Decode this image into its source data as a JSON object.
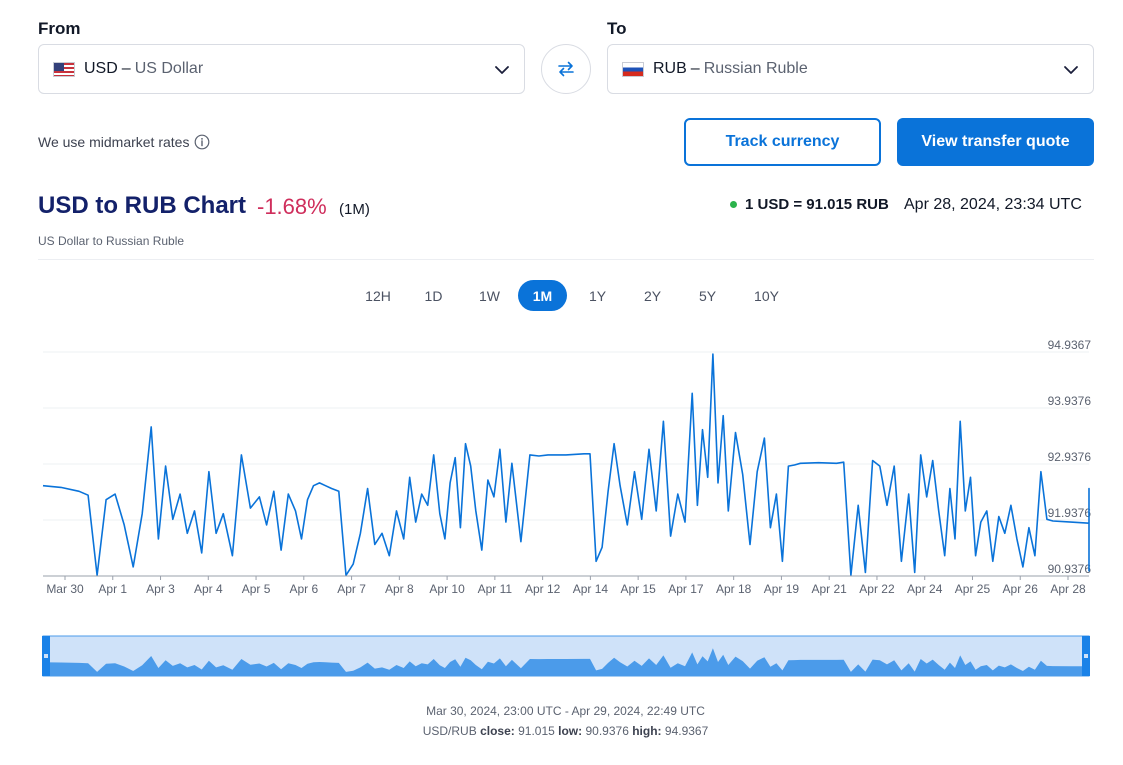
{
  "from": {
    "label": "From",
    "code": "USD",
    "name": "US Dollar",
    "flag": "us-flag-icon"
  },
  "to": {
    "label": "To",
    "code": "RUB",
    "name": "Russian Ruble",
    "flag": "ru-flag-icon"
  },
  "note": "We use midmarket rates",
  "buttons": {
    "track": "Track currency",
    "quote": "View transfer quote"
  },
  "chart_header": {
    "title": "USD to RUB Chart",
    "change": "-1.68%",
    "period": "(1M)",
    "subtitle": "US Dollar to Russian Ruble",
    "rate": "1 USD = 91.015 RUB",
    "timestamp": "Apr 28, 2024, 23:34 UTC"
  },
  "periods": [
    "12H",
    "1D",
    "1W",
    "1M",
    "1Y",
    "2Y",
    "5Y",
    "10Y"
  ],
  "active_period": "1M",
  "footer": {
    "range": "Mar 30, 2024, 23:00 UTC - Apr 29, 2024, 22:49 UTC",
    "pair": "USD/RUB",
    "close_label": "close:",
    "close": "91.015",
    "low_label": "low:",
    "low": "90.9376",
    "high_label": "high:",
    "high": "94.9367"
  },
  "colors": {
    "accent": "#0a73d9",
    "negative": "#cf2e5c",
    "live": "#2bb34b",
    "title": "#13216a"
  },
  "chart_data": {
    "type": "line",
    "x_tick_labels": [
      "Mar 30",
      "Apr 1",
      "Apr 3",
      "Apr 4",
      "Apr 5",
      "Apr 6",
      "Apr 7",
      "Apr 8",
      "Apr 10",
      "Apr 11",
      "Apr 12",
      "Apr 14",
      "Apr 15",
      "Apr 17",
      "Apr 18",
      "Apr 19",
      "Apr 21",
      "Apr 22",
      "Apr 24",
      "Apr 25",
      "Apr 26",
      "Apr 28"
    ],
    "y_tick_labels": [
      "94.9367",
      "93.9376",
      "92.9376",
      "91.9376",
      "90.9376"
    ],
    "ylim": [
      90.9376,
      94.9367
    ],
    "xlim": [
      "2024-03-30",
      "2024-04-28"
    ],
    "series": [
      {
        "points": [
          [
            "2024-03-30",
            92.55
          ],
          [
            "2024-03-30",
            92.52
          ],
          [
            "2024-03-31",
            92.45
          ],
          [
            "2024-03-31",
            92.38
          ],
          [
            "2024-03-31",
            90.95
          ],
          [
            "2024-03-31",
            92.3
          ],
          [
            "2024-04-01",
            92.4
          ],
          [
            "2024-04-01",
            91.85
          ],
          [
            "2024-04-01",
            91.1
          ],
          [
            "2024-04-01",
            92.05
          ],
          [
            "2024-04-02",
            93.6
          ],
          [
            "2024-04-02",
            91.6
          ],
          [
            "2024-04-02",
            92.9
          ],
          [
            "2024-04-02",
            91.95
          ],
          [
            "2024-04-02",
            92.4
          ],
          [
            "2024-04-03",
            91.7
          ],
          [
            "2024-04-03",
            92.1
          ],
          [
            "2024-04-03",
            91.35
          ],
          [
            "2024-04-03",
            92.8
          ],
          [
            "2024-04-03",
            91.7
          ],
          [
            "2024-04-04",
            92.05
          ],
          [
            "2024-04-04",
            91.3
          ],
          [
            "2024-04-04",
            93.1
          ],
          [
            "2024-04-04",
            92.15
          ],
          [
            "2024-04-05",
            92.35
          ],
          [
            "2024-04-05",
            91.85
          ],
          [
            "2024-04-05",
            92.45
          ],
          [
            "2024-04-05",
            91.4
          ],
          [
            "2024-04-05",
            92.4
          ],
          [
            "2024-04-06",
            92.1
          ],
          [
            "2024-04-06",
            91.6
          ],
          [
            "2024-04-06",
            92.3
          ],
          [
            "2024-04-06",
            92.55
          ],
          [
            "2024-04-06",
            92.6
          ],
          [
            "2024-04-06",
            92.55
          ],
          [
            "2024-04-07",
            92.5
          ],
          [
            "2024-04-07",
            92.45
          ],
          [
            "2024-04-07",
            90.95
          ],
          [
            "2024-04-07",
            91.15
          ],
          [
            "2024-04-07",
            91.7
          ],
          [
            "2024-04-08",
            92.5
          ],
          [
            "2024-04-08",
            91.5
          ],
          [
            "2024-04-08",
            91.7
          ],
          [
            "2024-04-08",
            91.3
          ],
          [
            "2024-04-08",
            92.1
          ],
          [
            "2024-04-09",
            91.6
          ],
          [
            "2024-04-09",
            92.7
          ],
          [
            "2024-04-09",
            91.9
          ],
          [
            "2024-04-09",
            92.4
          ],
          [
            "2024-04-09",
            92.2
          ],
          [
            "2024-04-09",
            93.1
          ],
          [
            "2024-04-10",
            92.05
          ],
          [
            "2024-04-10",
            91.6
          ],
          [
            "2024-04-10",
            92.6
          ],
          [
            "2024-04-10",
            93.05
          ],
          [
            "2024-04-10",
            91.8
          ],
          [
            "2024-04-10",
            93.3
          ],
          [
            "2024-04-10",
            92.9
          ],
          [
            "2024-04-11",
            92.1
          ],
          [
            "2024-04-11",
            91.4
          ],
          [
            "2024-04-11",
            92.65
          ],
          [
            "2024-04-11",
            92.35
          ],
          [
            "2024-04-11",
            93.2
          ],
          [
            "2024-04-11",
            91.9
          ],
          [
            "2024-04-12",
            92.95
          ],
          [
            "2024-04-12",
            91.55
          ],
          [
            "2024-04-12",
            93.1
          ],
          [
            "2024-04-12",
            93.08
          ],
          [
            "2024-04-13",
            93.1
          ],
          [
            "2024-04-13",
            93.1
          ],
          [
            "2024-04-14",
            93.12
          ],
          [
            "2024-04-14",
            93.12
          ],
          [
            "2024-04-14",
            91.2
          ],
          [
            "2024-04-14",
            91.45
          ],
          [
            "2024-04-14",
            92.45
          ],
          [
            "2024-04-14",
            93.3
          ],
          [
            "2024-04-15",
            92.55
          ],
          [
            "2024-04-15",
            91.85
          ],
          [
            "2024-04-15",
            92.8
          ],
          [
            "2024-04-15",
            91.95
          ],
          [
            "2024-04-15",
            93.2
          ],
          [
            "2024-04-16",
            92.1
          ],
          [
            "2024-04-16",
            93.7
          ],
          [
            "2024-04-16",
            91.65
          ],
          [
            "2024-04-16",
            92.4
          ],
          [
            "2024-04-16",
            91.9
          ],
          [
            "2024-04-17",
            94.2
          ],
          [
            "2024-04-17",
            92.2
          ],
          [
            "2024-04-17",
            93.55
          ],
          [
            "2024-04-17",
            92.7
          ],
          [
            "2024-04-17",
            94.9
          ],
          [
            "2024-04-17",
            92.6
          ],
          [
            "2024-04-17",
            93.8
          ],
          [
            "2024-04-18",
            92.1
          ],
          [
            "2024-04-18",
            93.5
          ],
          [
            "2024-04-18",
            92.75
          ],
          [
            "2024-04-18",
            91.5
          ],
          [
            "2024-04-18",
            92.8
          ],
          [
            "2024-04-19",
            93.4
          ],
          [
            "2024-04-19",
            91.8
          ],
          [
            "2024-04-19",
            92.4
          ],
          [
            "2024-04-19",
            91.2
          ],
          [
            "2024-04-19",
            92.9
          ],
          [
            "2024-04-19",
            92.92
          ],
          [
            "2024-04-20",
            92.95
          ],
          [
            "2024-04-20",
            92.96
          ],
          [
            "2024-04-21",
            92.95
          ],
          [
            "2024-04-21",
            92.97
          ],
          [
            "2024-04-21",
            90.95
          ],
          [
            "2024-04-21",
            92.2
          ],
          [
            "2024-04-21",
            91.0
          ],
          [
            "2024-04-22",
            93.0
          ],
          [
            "2024-04-22",
            92.9
          ],
          [
            "2024-04-22",
            92.2
          ],
          [
            "2024-04-22",
            92.9
          ],
          [
            "2024-04-22",
            91.2
          ],
          [
            "2024-04-23",
            92.4
          ],
          [
            "2024-04-23",
            91.0
          ],
          [
            "2024-04-23",
            93.1
          ],
          [
            "2024-04-23",
            92.35
          ],
          [
            "2024-04-23",
            93.0
          ],
          [
            "2024-04-23",
            92.1
          ],
          [
            "2024-04-24",
            91.3
          ],
          [
            "2024-04-24",
            92.5
          ],
          [
            "2024-04-24",
            91.6
          ],
          [
            "2024-04-24",
            93.7
          ],
          [
            "2024-04-24",
            92.1
          ],
          [
            "2024-04-24",
            92.7
          ],
          [
            "2024-04-24",
            91.3
          ],
          [
            "2024-04-25",
            91.9
          ],
          [
            "2024-04-25",
            92.1
          ],
          [
            "2024-04-25",
            91.2
          ],
          [
            "2024-04-25",
            92.0
          ],
          [
            "2024-04-25",
            91.7
          ],
          [
            "2024-04-25",
            92.2
          ],
          [
            "2024-04-26",
            91.6
          ],
          [
            "2024-04-26",
            91.1
          ],
          [
            "2024-04-26",
            91.8
          ],
          [
            "2024-04-26",
            91.3
          ],
          [
            "2024-04-26",
            92.8
          ],
          [
            "2024-04-26",
            91.95
          ],
          [
            "2024-04-27",
            91.92
          ],
          [
            "2024-04-27",
            91.9
          ],
          [
            "2024-04-28",
            91.88
          ],
          [
            "2024-04-28",
            91.85
          ],
          [
            "2024-04-28",
            92.5
          ],
          [
            "2024-04-28",
            92.4
          ],
          [
            "2024-04-28",
            91.02
          ]
        ]
      }
    ]
  }
}
